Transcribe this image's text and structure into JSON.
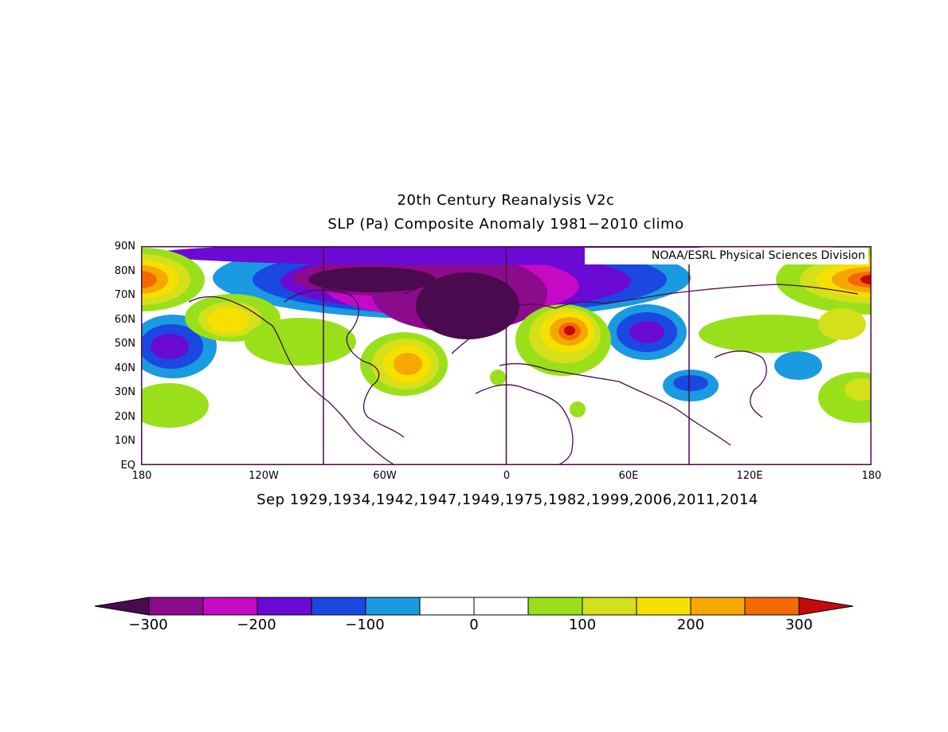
{
  "title_line1": "20th Century Reanalysis V2c",
  "title_line2": "SLP (Pa) Composite Anomaly 1981-2010 climo",
  "subtitle": "Sep 1929,1934,1942,1947,1949,1975,1982,1999,2006,2011,2014",
  "credit": "NOAA/ESRL Physical Sciences Division",
  "y_axis_labels": [
    "90N",
    "80N",
    "70N",
    "60N",
    "50N",
    "40N",
    "30N",
    "20N",
    "10N",
    "EQ"
  ],
  "x_axis_labels": [
    "180",
    "120W",
    "60W",
    "0",
    "60E",
    "120E",
    "180"
  ],
  "colorbar": {
    "colors": [
      "#4a0a4d",
      "#8c0a8c",
      "#c40ac4",
      "#6a0ad4",
      "#1a48e0",
      "#1a9ae0",
      "#ffffff",
      "#ffffff",
      "#9ae01a",
      "#d4e01a",
      "#f5e000",
      "#f5a800",
      "#f56a00",
      "#c40a0a"
    ],
    "tick_labels": [
      "-300",
      "-200",
      "-100",
      "0",
      "100",
      "200",
      "300"
    ],
    "levels": [
      -300,
      -250,
      -200,
      -150,
      -100,
      -50,
      0,
      50,
      100,
      150,
      200,
      250,
      300
    ]
  },
  "map_extent": {
    "lon_min": -180,
    "lon_max": 180,
    "lat_min": 0,
    "lat_max": 90
  }
}
